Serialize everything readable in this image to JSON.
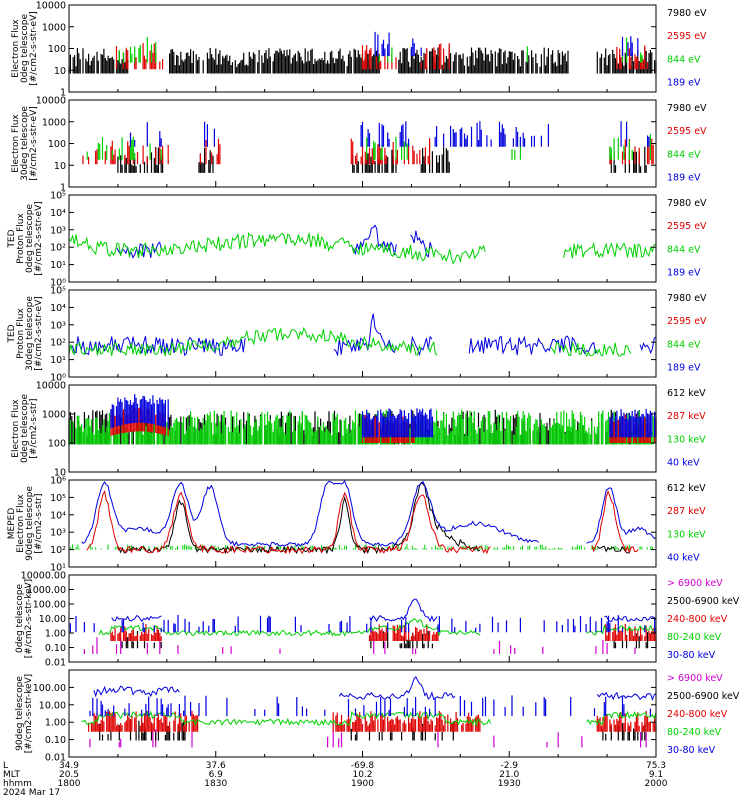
{
  "footer": {
    "row_labels": [
      "L",
      "MLT",
      "hhmm",
      "2024 Mar 17"
    ],
    "ticks": [
      {
        "L": "34.9",
        "MLT": "20.5",
        "hhmm": "1800"
      },
      {
        "L": "37.6",
        "MLT": "6.9",
        "hhmm": "1830"
      },
      {
        "L": "-69.8",
        "MLT": "10.2",
        "hhmm": "1900"
      },
      {
        "L": "-2.9",
        "MLT": "21.0",
        "hhmm": "1930"
      },
      {
        "L": "75.3",
        "MLT": "9.1",
        "hhmm": "2000"
      }
    ]
  },
  "colors": {
    "black": "#000000",
    "red": "#e00000",
    "green": "#00d000",
    "blue": "#0000e0",
    "magenta": "#d000d0"
  },
  "chart_data": [
    {
      "type": "scatter",
      "ylabel": [
        "Electron Flux",
        "0deg telescope",
        "[#/cm2-s-str-eV]"
      ],
      "yscale": "log",
      "ylim": [
        1,
        10000
      ],
      "yticks": [
        {
          "v": 1,
          "t": "1"
        },
        {
          "v": 10,
          "t": "10"
        },
        {
          "v": 100,
          "t": "100"
        },
        {
          "v": 1000,
          "t": "1000"
        },
        {
          "v": 10000,
          "t": "10000"
        }
      ],
      "legend": [
        {
          "name": "7980 eV",
          "color": "black"
        },
        {
          "name": "2595 eV",
          "color": "red"
        },
        {
          "name": "844 eV",
          "color": "green"
        },
        {
          "name": "189 eV",
          "color": "blue"
        }
      ],
      "profile": "ted_e0"
    },
    {
      "type": "scatter",
      "ylabel": [
        "Electron Flux",
        "30deg telescope",
        "[#/cm2-s-str-eV]"
      ],
      "yscale": "log",
      "ylim": [
        1,
        10000
      ],
      "yticks": [
        {
          "v": 1,
          "t": "1"
        },
        {
          "v": 10,
          "t": "10"
        },
        {
          "v": 100,
          "t": "100"
        },
        {
          "v": 1000,
          "t": "1000"
        },
        {
          "v": 10000,
          "t": "10000"
        }
      ],
      "legend": [
        {
          "name": "7980 eV",
          "color": "black"
        },
        {
          "name": "2595 eV",
          "color": "red"
        },
        {
          "name": "844 eV",
          "color": "green"
        },
        {
          "name": "189 eV",
          "color": "blue"
        }
      ],
      "profile": "ted_e30"
    },
    {
      "type": "line",
      "ylabel": [
        "TED",
        "Proton Flux",
        "0deg telescope",
        "[#/cm2-s-str-eV]"
      ],
      "yscale": "log",
      "ylim": [
        1,
        100000
      ],
      "yticks": [
        {
          "v": 1,
          "t": "10⁰"
        },
        {
          "v": 10,
          "t": "10¹"
        },
        {
          "v": 100,
          "t": "10²"
        },
        {
          "v": 1000,
          "t": "10³"
        },
        {
          "v": 10000,
          "t": "10⁴"
        },
        {
          "v": 100000,
          "t": "10⁵"
        }
      ],
      "legend": [
        {
          "name": "7980 eV",
          "color": "black"
        },
        {
          "name": "2595 eV",
          "color": "red"
        },
        {
          "name": "844 eV",
          "color": "green"
        },
        {
          "name": "189 eV",
          "color": "blue"
        }
      ],
      "profile": "ted_p0"
    },
    {
      "type": "line",
      "ylabel": [
        "TED",
        "Proton Flux",
        "30deg telescope",
        "[#/cm2-s-str-eV]"
      ],
      "yscale": "log",
      "ylim": [
        1,
        100000
      ],
      "yticks": [
        {
          "v": 1,
          "t": "10⁰"
        },
        {
          "v": 10,
          "t": "10¹"
        },
        {
          "v": 100,
          "t": "10²"
        },
        {
          "v": 1000,
          "t": "10³"
        },
        {
          "v": 10000,
          "t": "10⁴"
        },
        {
          "v": 100000,
          "t": "10⁵"
        }
      ],
      "legend": [
        {
          "name": "7980 eV",
          "color": "black"
        },
        {
          "name": "2595 eV",
          "color": "red"
        },
        {
          "name": "844 eV",
          "color": "green"
        },
        {
          "name": "189 eV",
          "color": "blue"
        }
      ],
      "profile": "ted_p30"
    },
    {
      "type": "scatter",
      "ylabel": [
        "Electron Flux",
        "0deg telescope",
        "[#/cm2-s-str]"
      ],
      "yscale": "log",
      "ylim": [
        10,
        10000
      ],
      "yticks": [
        {
          "v": 10,
          "t": "10"
        },
        {
          "v": 100,
          "t": "100"
        },
        {
          "v": 1000,
          "t": "1000"
        },
        {
          "v": 10000,
          "t": "10000"
        }
      ],
      "legend": [
        {
          "name": "612 keV",
          "color": "black"
        },
        {
          "name": "287 keV",
          "color": "red"
        },
        {
          "name": "130 keV",
          "color": "green"
        },
        {
          "name": "40 keV",
          "color": "blue"
        }
      ],
      "profile": "mep_e0"
    },
    {
      "type": "line",
      "ylabel": [
        "MEPED",
        "Electron Flux",
        "90deg telescope",
        "[#/cm2-s-str]"
      ],
      "yscale": "log",
      "ylim": [
        10,
        1000000
      ],
      "yticks": [
        {
          "v": 10,
          "t": "10¹"
        },
        {
          "v": 100,
          "t": "10²"
        },
        {
          "v": 1000,
          "t": "10³"
        },
        {
          "v": 10000,
          "t": "10⁴"
        },
        {
          "v": 100000,
          "t": "10⁵"
        },
        {
          "v": 1000000,
          "t": "10⁶"
        }
      ],
      "legend": [
        {
          "name": "612 keV",
          "color": "black"
        },
        {
          "name": "287 keV",
          "color": "red"
        },
        {
          "name": "130 keV",
          "color": "green"
        },
        {
          "name": "40 keV",
          "color": "blue"
        }
      ],
      "profile": "mep_e90"
    },
    {
      "type": "line",
      "ylabel": [
        "0deg telescope",
        "[#/cm2-s-str-keV]"
      ],
      "yscale": "log",
      "ylim": [
        0.01,
        10000
      ],
      "yticks": [
        {
          "v": 0.01,
          "t": "0.01"
        },
        {
          "v": 0.1,
          "t": "0.10"
        },
        {
          "v": 1,
          "t": "1.00"
        },
        {
          "v": 10,
          "t": "10.00"
        },
        {
          "v": 100,
          "t": "100.00"
        },
        {
          "v": 1000,
          "t": "1000.00"
        },
        {
          "v": 10000,
          "t": "10000.00"
        }
      ],
      "legend": [
        {
          "name": "> 6900 keV",
          "color": "magenta"
        },
        {
          "name": "2500-6900 keV",
          "color": "black"
        },
        {
          "name": "240-800 keV",
          "color": "red"
        },
        {
          "name": "80-240 keV",
          "color": "green"
        },
        {
          "name": "30-80 keV",
          "color": "blue"
        }
      ],
      "profile": "mep_p0"
    },
    {
      "type": "line",
      "ylabel": [
        "90deg telescope",
        "[#/cm2-s-str-keV]"
      ],
      "yscale": "log",
      "ylim": [
        0.01,
        1000
      ],
      "yticks": [
        {
          "v": 0.01,
          "t": "0.01"
        },
        {
          "v": 0.1,
          "t": "0.10"
        },
        {
          "v": 1,
          "t": "1.00"
        },
        {
          "v": 10,
          "t": "10.00"
        },
        {
          "v": 100,
          "t": "100.00"
        }
      ],
      "legend": [
        {
          "name": "> 6900 keV",
          "color": "magenta"
        },
        {
          "name": "2500-6900 keV",
          "color": "black"
        },
        {
          "name": "240-800 keV",
          "color": "red"
        },
        {
          "name": "80-240 keV",
          "color": "green"
        },
        {
          "name": "30-80 keV",
          "color": "blue"
        }
      ],
      "profile": "mep_p90"
    }
  ]
}
